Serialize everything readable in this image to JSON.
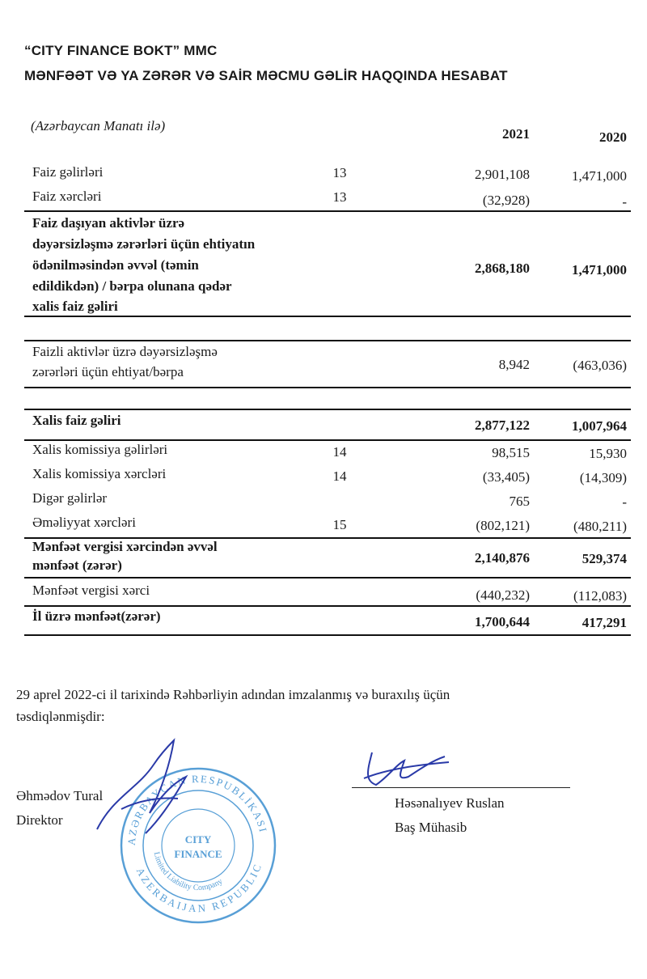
{
  "header": {
    "company": "“CITY FINANCE BOKT” MMC",
    "title": "MƏNFƏƏT VƏ YA ZƏRƏR VƏ SAİR MƏCMU GƏLİR HAQQINDA HESABAT"
  },
  "table": {
    "currency_note": "(Azərbaycan Manatı ilə)",
    "columns": [
      "2021",
      "2020"
    ],
    "rows": [
      {
        "label": "Faiz gəlirləri",
        "note": "13",
        "v2021": "2,901,108",
        "v2020": "1,471,000"
      },
      {
        "label": "Faiz xərcləri",
        "note": "13",
        "v2021": "(32,928)",
        "v2020": "-"
      },
      {
        "lines": [
          "Faiz daşıyan aktivlər üzrə",
          "dəyərsizləşmə zərərləri üçün ehtiyatın",
          "ödənilməsindən əvvəl (təmin",
          "edildikdən) / bərpa olunana qədər",
          "xalis faiz gəliri"
        ],
        "v2021": "2,868,180",
        "v2020": "1,471,000",
        "bold": true
      },
      {
        "lines": [
          "Faizli aktivlər üzrə dəyərsizləşmə",
          "zərərləri üçün ehtiyat/bərpa"
        ],
        "v2021": "8,942",
        "v2020": "(463,036)"
      },
      {
        "label": "Xalis faiz gəliri",
        "v2021": "2,877,122",
        "v2020": "1,007,964",
        "bold": true
      },
      {
        "label": "Xalis komissiya gəlirləri",
        "note": "14",
        "v2021": "98,515",
        "v2020": "15,930"
      },
      {
        "label": "Xalis komissiya xərcləri",
        "note": "14",
        "v2021": "(33,405)",
        "v2020": "(14,309)"
      },
      {
        "label": "Digər gəlirlər",
        "v2021": "765",
        "v2020": "-"
      },
      {
        "label": "Əməliyyat xərcləri",
        "note": "15",
        "v2021": "(802,121)",
        "v2020": "(480,211)"
      },
      {
        "lines": [
          "Mənfəət vergisi xərcindən əvvəl",
          "mənfəət (zərər)"
        ],
        "v2021": "2,140,876",
        "v2020": "529,374",
        "bold": true
      },
      {
        "label": "Mənfəət vergisi xərci",
        "v2021": "(440,232)",
        "v2020": "(112,083)"
      },
      {
        "label": "İl üzrə mənfəət(zərər)",
        "v2021": "1,700,644",
        "v2020": "417,291",
        "bold": true
      }
    ]
  },
  "approval": {
    "line1": "29 aprel 2022-ci il tarixində Rəhbərliyin adından imzalanmış və buraxılış üçün",
    "line2": "təsdiqlənmişdir:"
  },
  "signatories": [
    {
      "name": "Əhmədov Tural",
      "role": "Direktor"
    },
    {
      "name": "Həsənalıyev Ruslan",
      "role": "Baş Mühasib"
    }
  ],
  "stamp": {
    "color": "#3b8fd0",
    "center": "CITY FINANCE",
    "outer_top": "AZƏRBAYCAN RESPUBLİKASI",
    "outer_bottom": "AZERBAIJAN REPUBLIC",
    "inner": "Limited Liability Company"
  },
  "signature_color": "#2a3aa8"
}
